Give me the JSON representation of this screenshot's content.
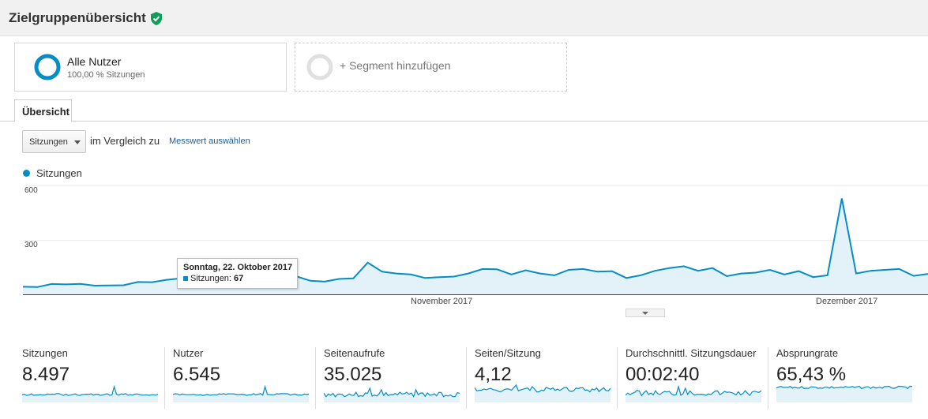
{
  "header": {
    "title": "Zielgruppenübersicht"
  },
  "segments": {
    "primary": {
      "title": "Alle Nutzer",
      "subtitle": "100,00 % Sitzungen"
    },
    "add_label": "+ Segment hinzufügen"
  },
  "tabs": [
    {
      "label": "Übersicht",
      "active": true
    }
  ],
  "controls": {
    "metric_select": "Sitzungen",
    "compare_text": "im Vergleich zu",
    "compare_link": "Messwert auswählen"
  },
  "chart": {
    "legend": "Sitzungen",
    "y_ticks": [
      "600",
      "300"
    ],
    "x_ticks": [
      "November 2017",
      "Dezember 2017"
    ],
    "tooltip": {
      "date": "Sonntag, 22. Oktober 2017",
      "metric": "Sitzungen:",
      "value": "67"
    }
  },
  "chart_data": {
    "type": "area",
    "series": [
      {
        "name": "Sitzungen",
        "values": [
          42,
          40,
          57,
          55,
          58,
          48,
          49,
          50,
          68,
          67,
          80,
          88,
          72,
          69,
          75,
          67,
          85,
          87,
          89,
          100,
          75,
          70,
          85,
          88,
          175,
          125,
          115,
          110,
          90,
          95,
          98,
          115,
          140,
          138,
          110,
          133,
          115,
          105,
          135,
          140,
          125,
          128,
          90,
          105,
          130,
          145,
          155,
          130,
          145,
          100,
          115,
          120,
          135,
          110,
          128,
          95,
          105,
          530,
          115,
          130,
          135,
          140,
          102,
          113
        ]
      }
    ],
    "x_labels": [
      "November 2017",
      "Dezember 2017"
    ],
    "y_ticks": [
      300,
      600
    ],
    "ylim": [
      0,
      610
    ],
    "color": "#058dc7",
    "fill": "#e3f1f9",
    "grid": true
  },
  "kpis": [
    {
      "label": "Sitzungen",
      "value": "8.497"
    },
    {
      "label": "Nutzer",
      "value": "6.545"
    },
    {
      "label": "Seitenaufrufe",
      "value": "35.025"
    },
    {
      "label": "Seiten/Sitzung",
      "value": "4,12"
    },
    {
      "label": "Durchschnittl. Sitzungsdauer",
      "value": "00:02:40"
    },
    {
      "label": "Absprungrate",
      "value": "65,43 %"
    }
  ],
  "colors": {
    "accent": "#058dc7",
    "verified": "#0f9d58",
    "link": "#1a5e9c"
  },
  "icons": {
    "verified": "check-shield-icon",
    "dropdown": "caret-down-icon",
    "collapse": "chevron-down-icon"
  }
}
